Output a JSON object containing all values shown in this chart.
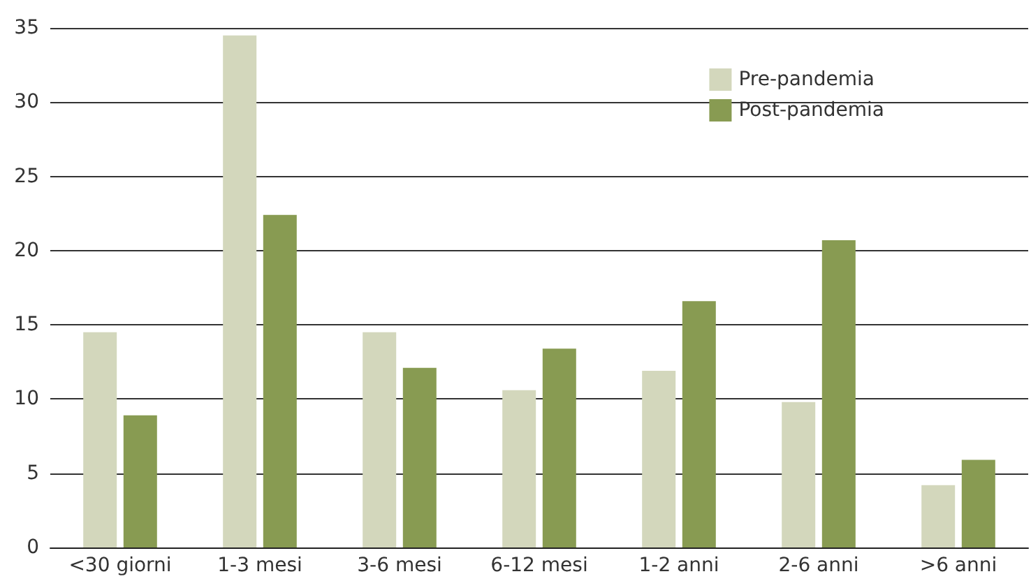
{
  "chart_data": {
    "type": "bar",
    "categories": [
      "<30 giorni",
      "1-3 mesi",
      "3-6 mesi",
      "6-12 mesi",
      "1-2 anni",
      "2-6 anni",
      ">6 anni"
    ],
    "series": [
      {
        "name": "Pre-pandemia",
        "color": "#d3d7bc",
        "values": [
          14.5,
          34.5,
          14.5,
          10.6,
          11.9,
          9.8,
          4.2
        ]
      },
      {
        "name": "Post-pandemia",
        "color": "#889b52",
        "values": [
          8.9,
          22.4,
          12.1,
          13.4,
          16.6,
          20.7,
          5.9
        ]
      }
    ],
    "ylim": [
      0,
      35
    ],
    "yticks": [
      0,
      5,
      10,
      15,
      20,
      25,
      30,
      35
    ],
    "grid": "y",
    "legend": "top right"
  }
}
